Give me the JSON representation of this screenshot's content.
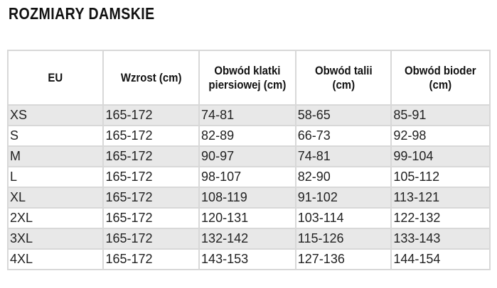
{
  "title": "ROZMIARY DAMSKIE",
  "headers": [
    "EU",
    "Wzrost (cm)",
    "Obwód klatki piersiowej (cm)",
    "Obwód talii (cm)",
    "Obwód bioder (cm)"
  ],
  "rows": [
    [
      "XS",
      "165-172",
      "74-81",
      "58-65",
      "85-91"
    ],
    [
      "S",
      "165-172",
      "82-89",
      "66-73",
      "92-98"
    ],
    [
      "M",
      "165-172",
      "90-97",
      "74-81",
      "99-104"
    ],
    [
      "L",
      "165-172",
      "98-107",
      "82-90",
      "105-112"
    ],
    [
      "XL",
      "165-172",
      "108-119",
      "91-102",
      "113-121"
    ],
    [
      "2XL",
      "165-172",
      "120-131",
      "103-114",
      "122-132"
    ],
    [
      "3XL",
      "165-172",
      "132-142",
      "115-126",
      "133-143"
    ],
    [
      "4XL",
      "165-172",
      "143-153",
      "127-136",
      "144-154"
    ]
  ],
  "colors": {
    "row_alt": "#e8e8e8",
    "border": "#d8d8d8"
  }
}
